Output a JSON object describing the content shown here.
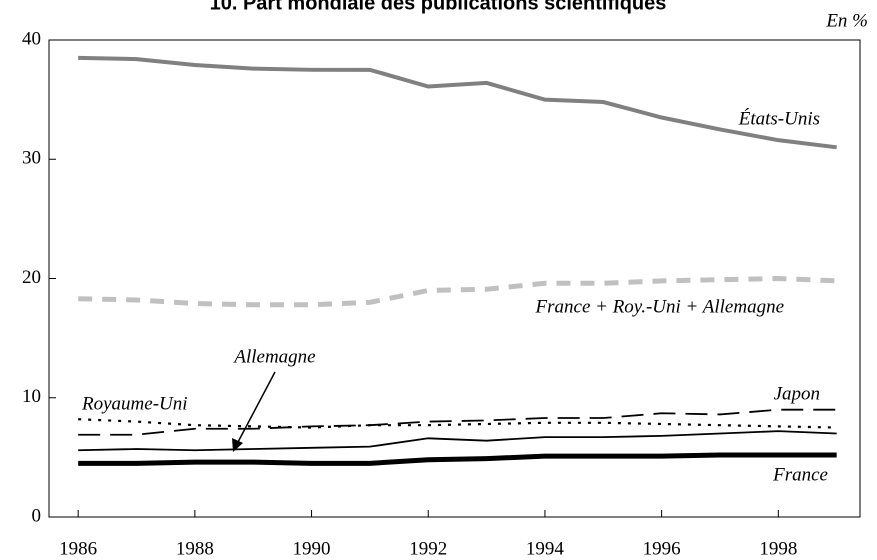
{
  "chart_data": {
    "type": "line",
    "title": "10. Part mondiale des publications scientifiques",
    "unit_label": "En %",
    "x": [
      1986,
      1987,
      1988,
      1989,
      1990,
      1991,
      1992,
      1993,
      1994,
      1995,
      1996,
      1997,
      1998,
      1999
    ],
    "xlim": [
      1985.5,
      1999.4
    ],
    "xticks": [
      1986,
      1988,
      1990,
      1992,
      1994,
      1996,
      1998
    ],
    "ylim": [
      0,
      40
    ],
    "yticks": [
      0,
      10,
      20,
      30,
      40
    ],
    "series": [
      {
        "name": "États-Unis",
        "color": "#808080",
        "values": [
          38.5,
          38.4,
          37.9,
          37.6,
          37.5,
          37.5,
          36.1,
          36.4,
          35.0,
          34.8,
          33.5,
          32.5,
          31.6,
          31.0
        ]
      },
      {
        "name": "France + Roy.-Uni + Allemagne",
        "color": "#c0c0c0",
        "values": [
          18.3,
          18.2,
          17.9,
          17.8,
          17.8,
          18.0,
          19.0,
          19.1,
          19.6,
          19.6,
          19.8,
          19.9,
          20.0,
          19.8
        ]
      },
      {
        "name": "Japon",
        "color": "#000000",
        "values": [
          6.9,
          6.9,
          7.4,
          7.4,
          7.6,
          7.7,
          8.0,
          8.1,
          8.3,
          8.3,
          8.7,
          8.6,
          9.0,
          9.0
        ]
      },
      {
        "name": "Royaume-Uni",
        "color": "#000000",
        "values": [
          8.2,
          8.0,
          7.7,
          7.6,
          7.5,
          7.7,
          7.7,
          7.8,
          7.9,
          7.9,
          7.8,
          7.7,
          7.6,
          7.5
        ]
      },
      {
        "name": "Allemagne",
        "color": "#000000",
        "values": [
          5.6,
          5.7,
          5.6,
          5.7,
          5.8,
          5.9,
          6.6,
          6.4,
          6.7,
          6.7,
          6.8,
          7.0,
          7.2,
          7.0
        ]
      },
      {
        "name": "France",
        "color": "#000000",
        "values": [
          4.5,
          4.5,
          4.6,
          4.6,
          4.5,
          4.5,
          4.8,
          4.9,
          5.1,
          5.1,
          5.1,
          5.2,
          5.2,
          5.2
        ]
      }
    ]
  }
}
